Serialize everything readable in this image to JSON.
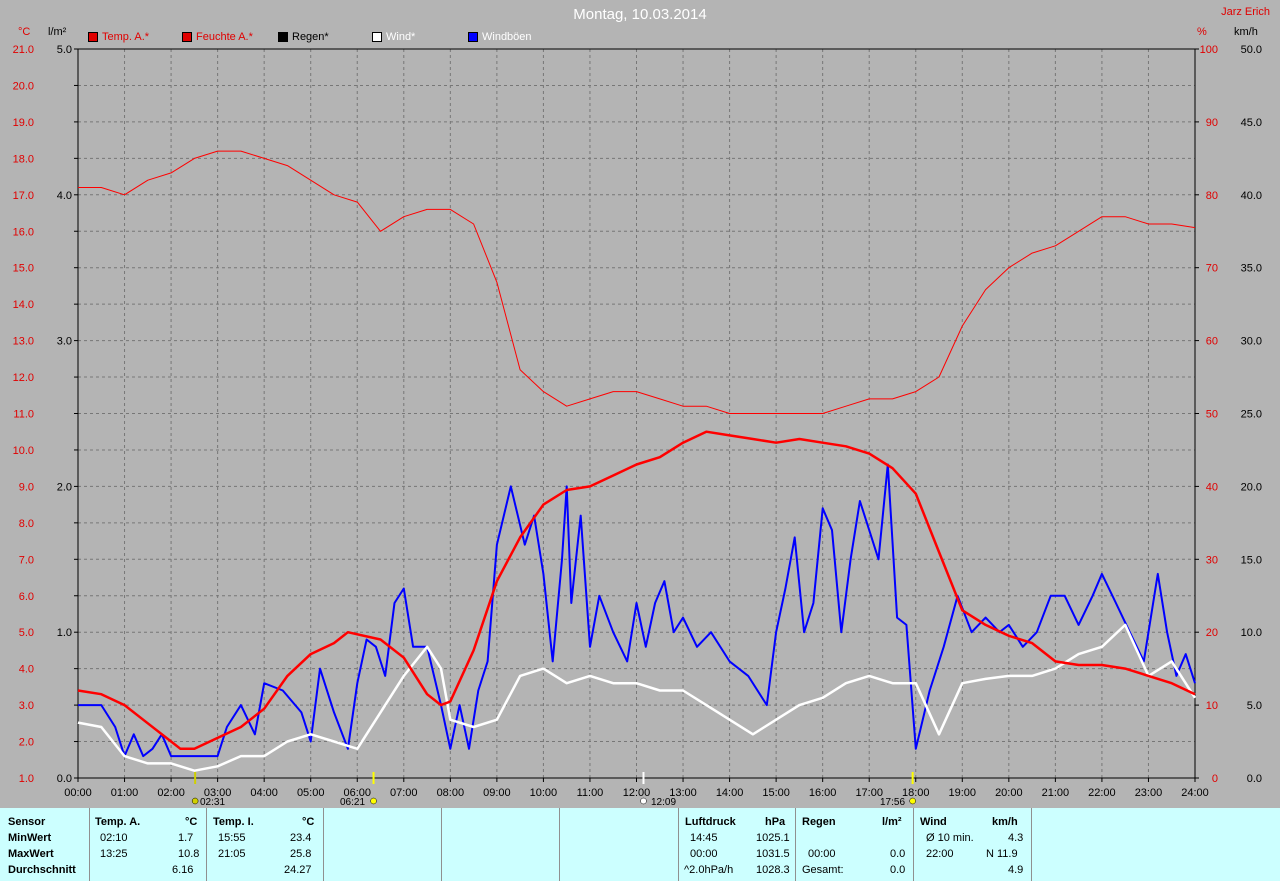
{
  "header": {
    "title": "Montag, 10.03.2014",
    "author": "Jarz Erich",
    "unit_temp": "°C",
    "unit_rain": "l/m²",
    "unit_humidity": "%",
    "unit_wind": "km/h"
  },
  "legend": [
    {
      "label": "Temp. A.*",
      "color": "#e00000",
      "text_color": "#e00000"
    },
    {
      "label": "Feuchte A.*",
      "color": "#e00000",
      "text_color": "#e00000"
    },
    {
      "label": "Regen*",
      "color": "#000000",
      "text_color": "#000000"
    },
    {
      "label": "Wind*",
      "color": "#ffffff",
      "text_color": "#ffffff"
    },
    {
      "label": "Windböen",
      "color": "#0000ff",
      "text_color": "#ffffff"
    }
  ],
  "events": {
    "moon_set": "02:31",
    "sunrise": "06:21",
    "noon": "12:09",
    "sunset": "17:56"
  },
  "chart_data": {
    "type": "line",
    "x_range": [
      0,
      24
    ],
    "x_ticks": [
      "00:00",
      "01:00",
      "02:00",
      "03:00",
      "04:00",
      "05:00",
      "06:00",
      "07:00",
      "08:00",
      "09:00",
      "10:00",
      "11:00",
      "12:00",
      "13:00",
      "14:00",
      "15:00",
      "16:00",
      "17:00",
      "18:00",
      "19:00",
      "20:00",
      "21:00",
      "22:00",
      "23:00",
      "24:00"
    ],
    "axis_temp": {
      "range": [
        1.0,
        21.0
      ],
      "ticks": [
        "1.0",
        "2.0",
        "3.0",
        "4.0",
        "5.0",
        "6.0",
        "7.0",
        "8.0",
        "9.0",
        "10.0",
        "11.0",
        "12.0",
        "13.0",
        "14.0",
        "15.0",
        "16.0",
        "17.0",
        "18.0",
        "19.0",
        "20.0",
        "21.0"
      ]
    },
    "axis_rain": {
      "range": [
        0.0,
        5.0
      ],
      "ticks": [
        "0.0",
        "1.0",
        "2.0",
        "3.0",
        "4.0",
        "5.0"
      ]
    },
    "axis_humidity": {
      "range": [
        0,
        100
      ],
      "ticks": [
        "0",
        "10",
        "20",
        "30",
        "40",
        "50",
        "60",
        "70",
        "80",
        "90",
        "100"
      ]
    },
    "axis_wind": {
      "range": [
        0.0,
        50.0
      ],
      "ticks": [
        "0.0",
        "5.0",
        "10.0",
        "15.0",
        "20.0",
        "25.0",
        "30.0",
        "35.0",
        "40.0",
        "45.0",
        "50.0"
      ]
    },
    "grid": true,
    "series": [
      {
        "name": "Temp. A.*",
        "axis": "temp",
        "color": "#ff0000",
        "width": 2.5,
        "x": [
          0,
          0.5,
          1.0,
          1.5,
          2.0,
          2.2,
          2.5,
          3.0,
          3.5,
          4.0,
          4.5,
          5.0,
          5.5,
          5.8,
          6.5,
          7.0,
          7.5,
          7.8,
          8.0,
          8.5,
          9.0,
          9.5,
          10.0,
          10.5,
          11.0,
          11.5,
          12.0,
          12.5,
          13.0,
          13.5,
          14.0,
          14.5,
          15.0,
          15.5,
          16.0,
          16.5,
          17.0,
          17.5,
          18.0,
          18.5,
          19.0,
          19.5,
          20.0,
          20.5,
          21.0,
          21.5,
          22.0,
          22.5,
          23.0,
          23.5,
          24.0
        ],
        "y": [
          3.4,
          3.3,
          3.0,
          2.5,
          2.0,
          1.8,
          1.8,
          2.1,
          2.4,
          2.9,
          3.8,
          4.4,
          4.7,
          5.0,
          4.8,
          4.3,
          3.3,
          3.0,
          3.1,
          4.5,
          6.4,
          7.6,
          8.5,
          8.9,
          9.0,
          9.3,
          9.6,
          9.8,
          10.2,
          10.5,
          10.4,
          10.3,
          10.2,
          10.3,
          10.2,
          10.1,
          9.9,
          9.5,
          8.8,
          7.2,
          5.6,
          5.2,
          4.9,
          4.7,
          4.2,
          4.1,
          4.1,
          4.0,
          3.8,
          3.6,
          3.3
        ]
      },
      {
        "name": "Feuchte A.*",
        "axis": "humidity",
        "color": "#ff0000",
        "width": 1,
        "x": [
          0,
          0.5,
          1.0,
          1.5,
          2.0,
          2.5,
          3.0,
          3.5,
          4.0,
          4.5,
          5.0,
          5.5,
          6.0,
          6.5,
          7.0,
          7.5,
          8.0,
          8.5,
          9.0,
          9.5,
          10.0,
          10.5,
          11.0,
          11.5,
          12.0,
          12.5,
          13.0,
          13.5,
          14.0,
          14.5,
          15.0,
          15.5,
          16.0,
          16.5,
          17.0,
          17.5,
          18.0,
          18.5,
          19.0,
          19.5,
          20.0,
          20.5,
          21.0,
          21.5,
          22.0,
          22.5,
          23.0,
          23.5,
          24.0
        ],
        "y": [
          81,
          81,
          80,
          82,
          83,
          85,
          86,
          86,
          85,
          84,
          82,
          80,
          79,
          75,
          77,
          78,
          78,
          76,
          68,
          56,
          53,
          51,
          52,
          53,
          53,
          52,
          51,
          51,
          50,
          50,
          50,
          50,
          50,
          51,
          52,
          52,
          53,
          55,
          62,
          67,
          70,
          72,
          73,
          75,
          77,
          77,
          76,
          76,
          75.5
        ]
      },
      {
        "name": "Wind*",
        "axis": "wind",
        "color": "#ffffff",
        "width": 2.5,
        "x": [
          0,
          0.5,
          1.0,
          1.5,
          2.0,
          2.5,
          3.0,
          3.5,
          4.0,
          4.5,
          5.0,
          5.5,
          6.0,
          6.5,
          7.0,
          7.5,
          7.8,
          8.0,
          8.5,
          9.0,
          9.5,
          10.0,
          10.5,
          11.0,
          11.5,
          12.0,
          12.5,
          13.0,
          13.5,
          14.0,
          14.5,
          15.0,
          15.5,
          16.0,
          16.5,
          17.0,
          17.5,
          18.0,
          18.5,
          19.0,
          19.5,
          20.0,
          20.5,
          21.0,
          21.5,
          22.0,
          22.5,
          23.0,
          23.5,
          24.0
        ],
        "y": [
          3.8,
          3.5,
          1.5,
          1.0,
          1.0,
          0.5,
          0.8,
          1.5,
          1.5,
          2.5,
          3.0,
          2.5,
          2.0,
          4.5,
          7.0,
          9.0,
          7.5,
          4.0,
          3.5,
          4.0,
          7.0,
          7.5,
          6.5,
          7.0,
          6.5,
          6.5,
          6.0,
          6.0,
          5.0,
          4.0,
          3.0,
          4.0,
          5.0,
          5.5,
          6.5,
          7.0,
          6.5,
          6.5,
          3.0,
          6.5,
          6.8,
          7.0,
          7.0,
          7.5,
          8.5,
          9.0,
          10.5,
          7.0,
          8.0,
          5.5
        ]
      },
      {
        "name": "Windböen",
        "axis": "wind",
        "color": "#0000ff",
        "width": 2,
        "x": [
          0,
          0.5,
          0.8,
          1.0,
          1.2,
          1.4,
          1.6,
          1.8,
          2.0,
          2.5,
          3.0,
          3.2,
          3.5,
          3.8,
          4.0,
          4.4,
          4.8,
          5.0,
          5.2,
          5.5,
          5.8,
          6.0,
          6.2,
          6.4,
          6.6,
          6.8,
          7.0,
          7.2,
          7.5,
          7.8,
          8.0,
          8.2,
          8.4,
          8.6,
          8.8,
          9.0,
          9.3,
          9.6,
          9.8,
          10.0,
          10.2,
          10.4,
          10.5,
          10.6,
          10.8,
          11.0,
          11.2,
          11.5,
          11.8,
          12.0,
          12.2,
          12.4,
          12.6,
          12.8,
          13.0,
          13.3,
          13.6,
          14.0,
          14.4,
          14.8,
          15.0,
          15.2,
          15.4,
          15.6,
          15.8,
          16.0,
          16.2,
          16.4,
          16.6,
          16.8,
          17.0,
          17.2,
          17.4,
          17.6,
          17.8,
          18.0,
          18.3,
          18.6,
          18.9,
          19.2,
          19.5,
          19.8,
          20.0,
          20.3,
          20.6,
          20.9,
          21.2,
          21.5,
          21.8,
          22.0,
          22.3,
          22.6,
          22.9,
          23.2,
          23.4,
          23.6,
          23.8,
          24.0
        ],
        "y": [
          5.0,
          5.0,
          3.5,
          1.5,
          3.0,
          1.5,
          2.0,
          3.0,
          1.5,
          1.5,
          1.5,
          3.5,
          5.0,
          3.0,
          6.5,
          6.0,
          4.5,
          2.5,
          7.5,
          4.5,
          2.0,
          6.5,
          9.5,
          9.0,
          7.0,
          12.0,
          13.0,
          9.0,
          9.0,
          5.0,
          2.0,
          5.0,
          2.0,
          6.0,
          8.0,
          16.0,
          20.0,
          16.0,
          18.0,
          14.0,
          8.0,
          15.0,
          20.0,
          12.0,
          18.0,
          9.0,
          12.5,
          10.0,
          8.0,
          12.0,
          9.0,
          12.0,
          13.5,
          10.0,
          11.0,
          9.0,
          10.0,
          8.0,
          7.0,
          5.0,
          10.0,
          13.0,
          16.5,
          10.0,
          12.0,
          18.5,
          17.0,
          10.0,
          15.0,
          19.0,
          17.0,
          15.0,
          21.5,
          11.0,
          10.5,
          2.0,
          6.0,
          9.0,
          12.5,
          10.0,
          11.0,
          10.0,
          10.5,
          9.0,
          10.0,
          12.5,
          12.5,
          10.5,
          12.5,
          14.0,
          12.0,
          10.0,
          8.0,
          14.0,
          10.0,
          7.0,
          8.5,
          6.5
        ]
      }
    ]
  },
  "table": {
    "row_labels": [
      "Sensor",
      "MinWert",
      "MaxWert",
      "Durchschnitt"
    ],
    "temp_a": {
      "header": "Temp. A.",
      "unit": "°C",
      "min_time": "02:10",
      "min": "1.7",
      "max_time": "13:25",
      "max": "10.8",
      "avg": "6.16"
    },
    "temp_i": {
      "header": "Temp. I.",
      "unit": "°C",
      "min_time": "15:55",
      "min": "23.4",
      "max_time": "21:05",
      "max": "25.8",
      "avg": "24.27"
    },
    "luftdruck": {
      "header": "Luftdruck",
      "unit": "hPa",
      "r1_time": "14:45",
      "r1": "1025.1",
      "r2_time": "00:00",
      "r2": "1031.5",
      "r3_time": "^2.0hPa/h",
      "r3": "1028.3"
    },
    "regen": {
      "header": "Regen",
      "unit": "l/m²",
      "r2_time": "00:00",
      "r2": "0.0",
      "r3_label": "Gesamt:",
      "r3": "0.0"
    },
    "wind": {
      "header": "Wind",
      "unit": "km/h",
      "r1_label": "Ø 10 min.",
      "r1": "4.3",
      "r2_time": "22:00",
      "r2": "N 11.9",
      "r3": "4.9"
    }
  }
}
